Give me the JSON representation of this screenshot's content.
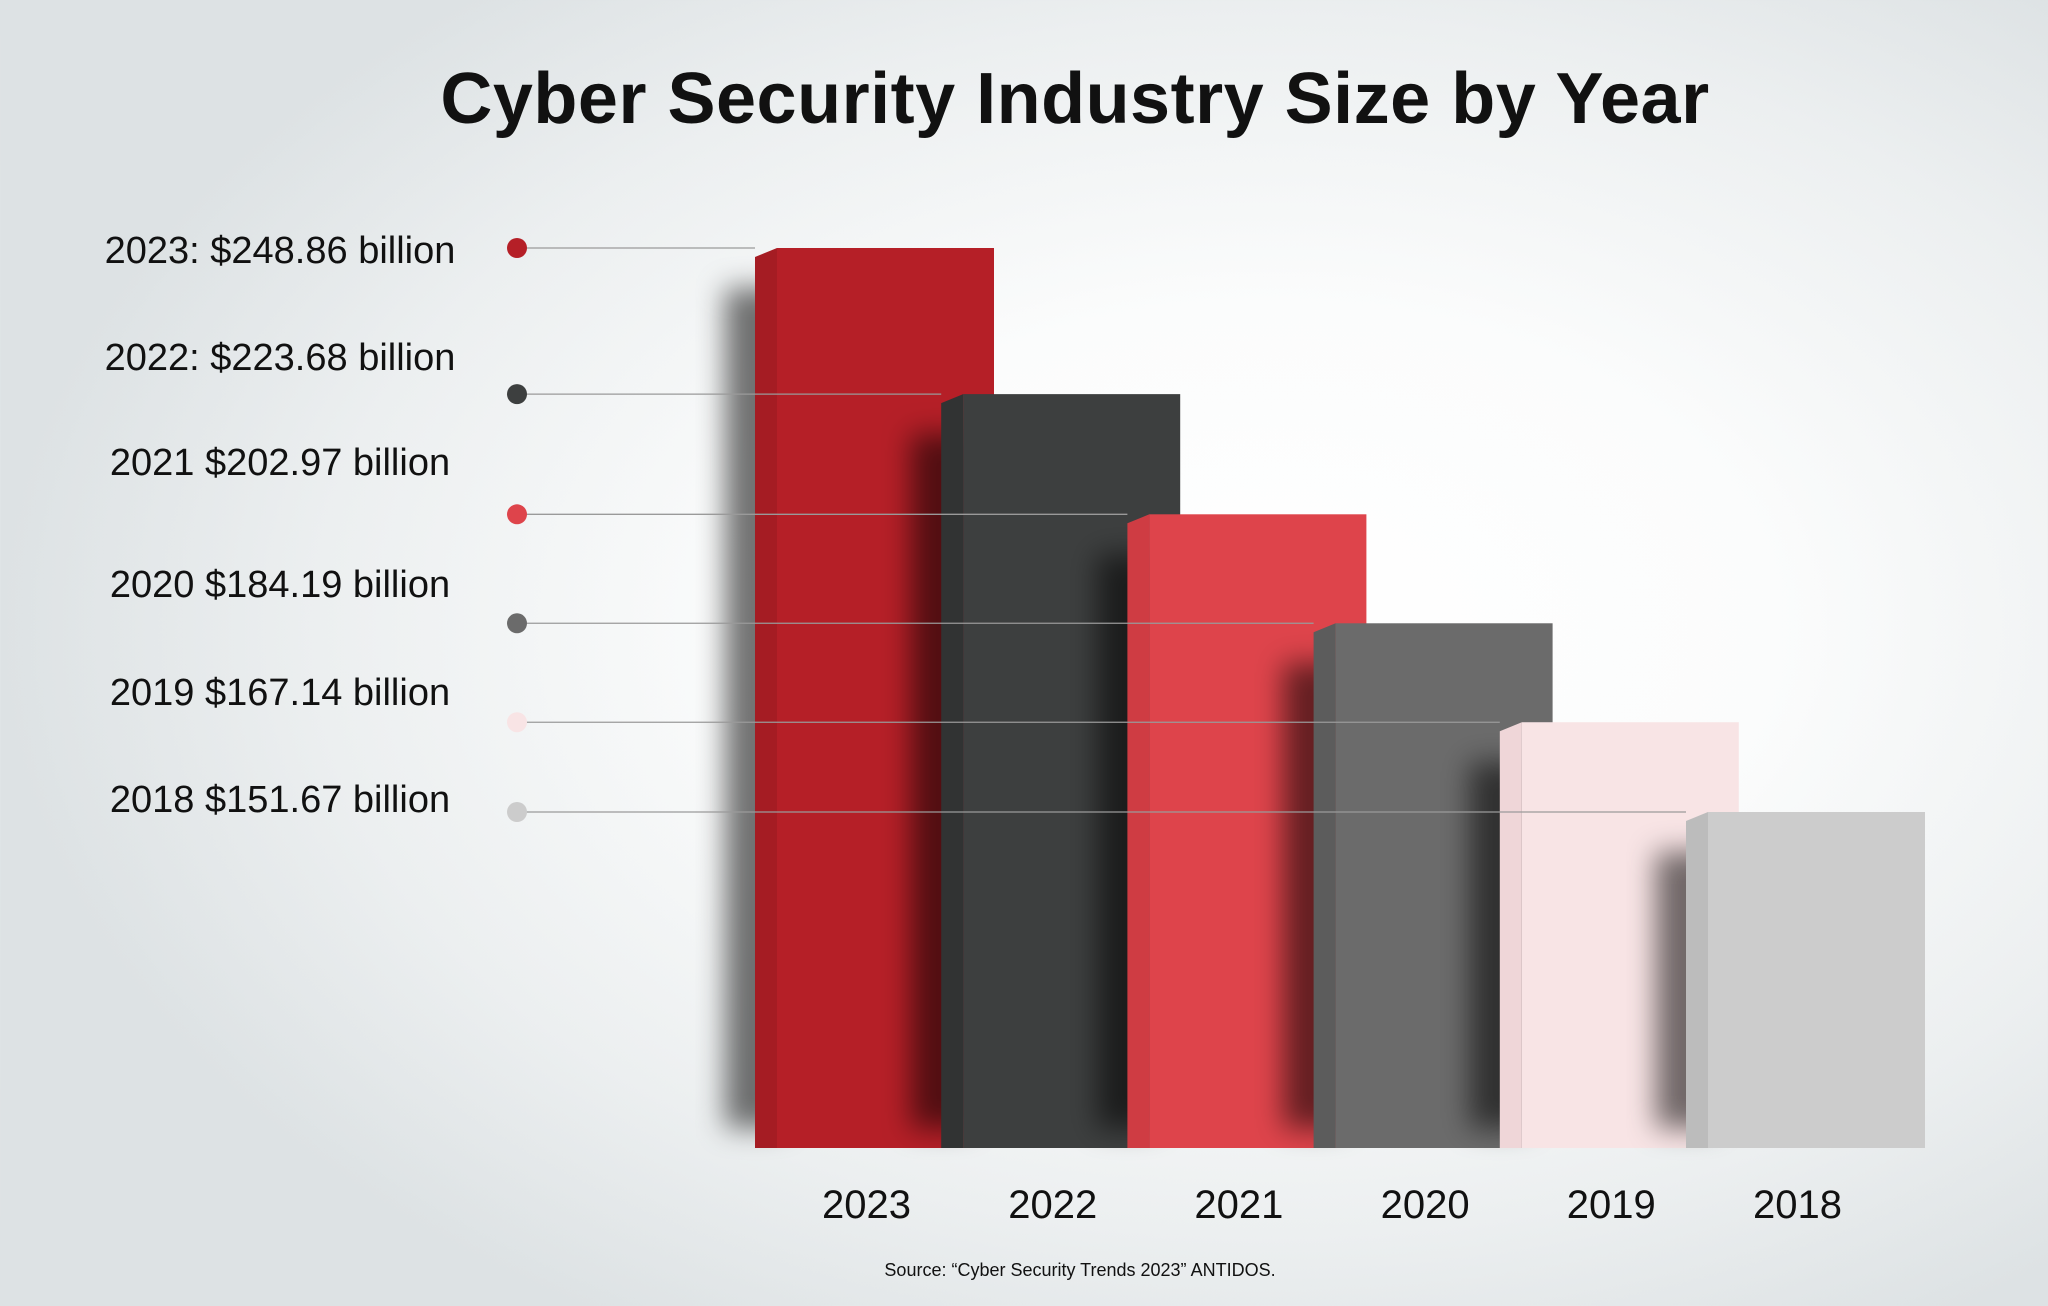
{
  "chart_data": {
    "type": "bar",
    "title": "Cyber Security Industry Size by Year",
    "categories": [
      "2023",
      "2022",
      "2021",
      "2020",
      "2019",
      "2018"
    ],
    "values": [
      248.86,
      223.68,
      202.97,
      184.19,
      167.14,
      151.67
    ],
    "unit": "billion USD",
    "value_labels": [
      "2023: $248.86 billion",
      "2022: $223.68 billion",
      "2021 $202.97 billion",
      "2020 $184.19 billion",
      "2019 $167.14 billion",
      "2018 $151.67 billion"
    ],
    "colors": [
      "#b51f27",
      "#3d3f3f",
      "#de444b",
      "#6b6b6b",
      "#f8e4e5",
      "#cccccc"
    ],
    "side_colors": [
      "#a51c23",
      "#313333",
      "#cf3c43",
      "#5c5c5c",
      "#efd6d8",
      "#bcbcbc"
    ],
    "grid": false,
    "legend": "left",
    "source": "Source: “Cyber Security Trends 2023” ANTIDOS."
  }
}
